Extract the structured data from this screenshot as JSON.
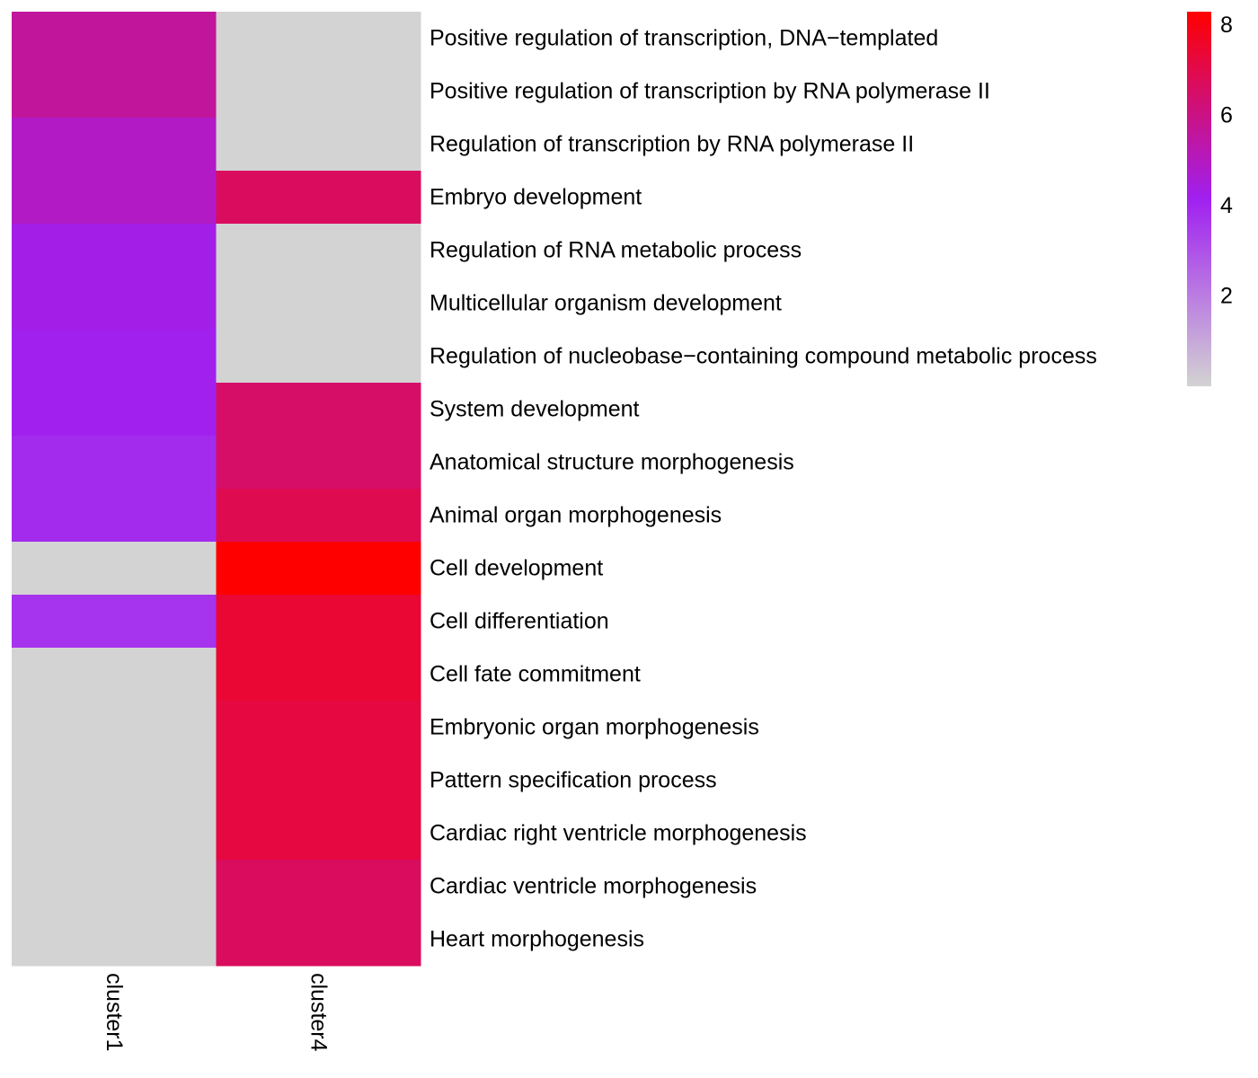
{
  "chart_data": {
    "type": "heatmap",
    "title": "",
    "xlabel": "",
    "ylabel": "",
    "columns": [
      "cluster1",
      "cluster4"
    ],
    "rows": [
      "Positive regulation of transcription, DNA−templated",
      "Positive regulation of transcription by RNA polymerase II",
      "Regulation of transcription by RNA polymerase II",
      "Embryo development",
      "Regulation of RNA metabolic process",
      "Multicellular organism development",
      "Regulation of nucleobase−containing compound metabolic process",
      "System development",
      "Anatomical structure morphogenesis",
      "Animal organ morphogenesis",
      "Cell development",
      "Cell differentiation",
      "Cell fate commitment",
      "Embryonic organ morphogenesis",
      "Pattern specification process",
      "Cardiac right ventricle morphogenesis",
      "Cardiac ventricle morphogenesis",
      "Heart morphogenesis"
    ],
    "values": [
      [
        5.6,
        0
      ],
      [
        5.6,
        0
      ],
      [
        4.9,
        0
      ],
      [
        4.9,
        6.7
      ],
      [
        4.3,
        0
      ],
      [
        4.3,
        0
      ],
      [
        4.2,
        0
      ],
      [
        4.2,
        6.5
      ],
      [
        3.9,
        6.5
      ],
      [
        3.9,
        6.9
      ],
      [
        0,
        8.3
      ],
      [
        3.7,
        7.4
      ],
      [
        0,
        7.4
      ],
      [
        0,
        7.2
      ],
      [
        0,
        7.2
      ],
      [
        0,
        7.2
      ],
      [
        0,
        6.7
      ],
      [
        0,
        6.7
      ]
    ],
    "color_scale": {
      "min": 0,
      "max": 8.3,
      "stops": [
        {
          "value": 0,
          "color": "#d3d3d3"
        },
        {
          "value": 4.15,
          "color": "#a020f0"
        },
        {
          "value": 8.3,
          "color": "#ff0000"
        }
      ],
      "ticks": [
        2,
        4,
        6,
        8
      ]
    },
    "legend_position": "top-right"
  }
}
